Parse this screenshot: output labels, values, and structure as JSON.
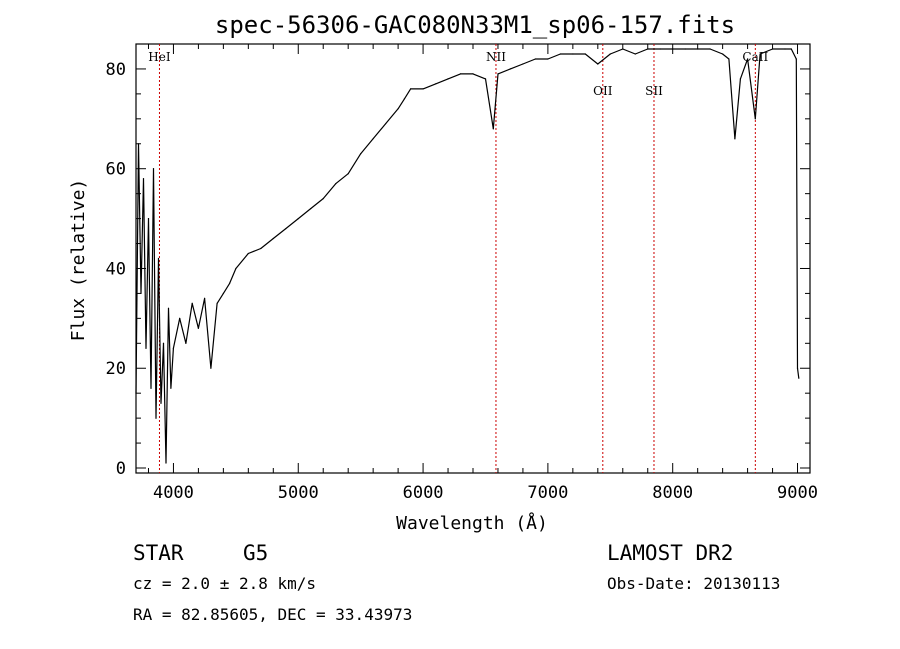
{
  "chart_data": {
    "type": "line",
    "title": "spec-56306-GAC080N33M1_sp06-157.fits",
    "xlabel": "Wavelength (Å)",
    "ylabel": "Flux (relative)",
    "xlim": [
      3700,
      9100
    ],
    "ylim": [
      -1,
      85
    ],
    "xticks": [
      4000,
      5000,
      6000,
      7000,
      8000,
      9000
    ],
    "yticks": [
      0,
      20,
      40,
      60,
      80
    ],
    "grid": false,
    "series": [
      {
        "x": [
          3700,
          3720,
          3740,
          3760,
          3780,
          3800,
          3820,
          3840,
          3860,
          3880,
          3900,
          3920,
          3940,
          3960,
          3980,
          4000,
          4050,
          4100,
          4150,
          4200,
          4250,
          4300,
          4350,
          4400,
          4450,
          4500,
          4600,
          4700,
          4800,
          4900,
          5000,
          5100,
          5200,
          5300,
          5400,
          5500,
          5600,
          5700,
          5800,
          5850,
          5900,
          6000,
          6100,
          6200,
          6300,
          6400,
          6500,
          6563,
          6600,
          6700,
          6800,
          6900,
          7000,
          7100,
          7200,
          7300,
          7400,
          7500,
          7600,
          7700,
          7800,
          7900,
          8000,
          8100,
          8200,
          8300,
          8400,
          8450,
          8498,
          8542,
          8600,
          8662,
          8700,
          8800,
          8900,
          8950,
          8990,
          9000,
          9010
        ],
        "y": [
          15,
          65,
          35,
          58,
          24,
          50,
          16,
          60,
          10,
          42,
          13,
          25,
          1,
          32,
          16,
          24,
          30,
          25,
          33,
          28,
          34,
          20,
          33,
          35,
          37,
          40,
          43,
          44,
          46,
          48,
          50,
          52,
          54,
          57,
          59,
          63,
          66,
          69,
          72,
          74,
          76,
          76,
          77,
          78,
          79,
          79,
          78,
          68,
          79,
          80,
          81,
          82,
          82,
          83,
          83,
          83,
          81,
          83,
          84,
          83,
          84,
          84,
          84,
          84,
          84,
          84,
          83,
          82,
          66,
          78,
          82,
          70,
          83,
          84,
          84,
          84,
          82,
          20,
          18
        ]
      }
    ],
    "annotations": [
      {
        "label": "HeI",
        "x": 3888,
        "label_pos": "top"
      },
      {
        "label": "NII",
        "x": 6584,
        "label_pos": "top"
      },
      {
        "label": "OII",
        "x": 7440,
        "label_pos": "below-spectrum"
      },
      {
        "label": "SII",
        "x": 7850,
        "label_pos": "below-spectrum"
      },
      {
        "label": "CaII",
        "x": 8662,
        "label_pos": "top"
      }
    ],
    "annotation_color": "#cc0000"
  },
  "info": {
    "class": "STAR",
    "subclass": "G5",
    "cz": "cz = 2.0 ± 2.8 km/s",
    "radec": "RA =  82.85605, DEC =  33.43973",
    "release": "LAMOST DR2",
    "obsdate": "Obs-Date: 20130113"
  }
}
